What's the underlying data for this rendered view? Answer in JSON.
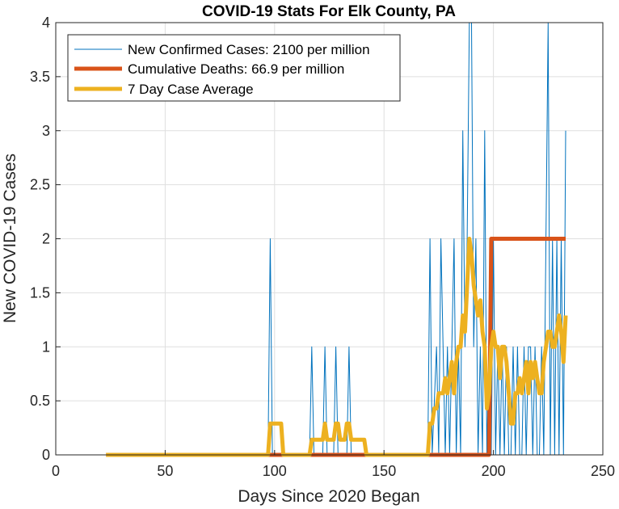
{
  "chart_data": {
    "type": "line",
    "title": "COVID-19 Stats For Elk County, PA",
    "xlabel": "Days Since 2020 Began",
    "ylabel": "New COVID-19 Cases",
    "xlim": [
      0,
      250
    ],
    "ylim": [
      0,
      4
    ],
    "xticks": [
      "0",
      "50",
      "100",
      "150",
      "200",
      "250"
    ],
    "yticks": [
      "0",
      "0.5",
      "1",
      "1.5",
      "2",
      "2.5",
      "3",
      "3.5",
      "4"
    ],
    "grid": true,
    "legend_position": "top-left",
    "series": [
      {
        "name": "New Confirmed Cases: 2100 per million",
        "color": "#0072BD",
        "x": [
          23,
          97,
          98,
          99,
          116,
          117,
          118,
          122,
          123,
          124,
          127,
          128,
          129,
          133,
          134,
          135,
          170,
          171,
          172,
          174,
          175,
          176,
          178,
          179,
          180,
          182,
          183,
          184,
          185,
          186,
          187,
          188,
          189,
          190,
          191,
          192,
          193,
          194,
          195,
          196,
          197,
          198,
          199,
          200,
          201,
          202,
          203,
          204,
          205,
          206,
          207,
          208,
          209,
          210,
          211,
          212,
          213,
          214,
          215,
          216,
          217,
          218,
          219,
          220,
          221,
          222,
          223,
          224,
          225,
          226,
          227,
          228,
          229,
          230,
          231,
          232,
          233
        ],
        "y": [
          0,
          0,
          2,
          0,
          0,
          1,
          0,
          0,
          1,
          0,
          0,
          1,
          0,
          0,
          1,
          0,
          0,
          2,
          0,
          1,
          0,
          2,
          0,
          1,
          0,
          2,
          0,
          1,
          0,
          3,
          1,
          2,
          4,
          4,
          1,
          2,
          0,
          1,
          0,
          3,
          0,
          1,
          0,
          2,
          0,
          1,
          0,
          1,
          0,
          1,
          0,
          0,
          1,
          0,
          1,
          0,
          0,
          1,
          0,
          1,
          1,
          0,
          1,
          0,
          0,
          1,
          0,
          2,
          4,
          0,
          2,
          0,
          2,
          0,
          2,
          0,
          3
        ]
      },
      {
        "name": "Cumulative Deaths: 66.9 per million",
        "color": "#D95319",
        "x": [
          23,
          197,
          198,
          199,
          233
        ],
        "y": [
          0,
          0,
          0,
          2,
          2
        ]
      },
      {
        "name": "7 Day Case Average",
        "color": "#EDB120",
        "x": [
          23,
          97,
          98,
          99,
          100,
          101,
          102,
          103,
          104,
          116,
          117,
          118,
          119,
          120,
          121,
          122,
          123,
          124,
          125,
          126,
          127,
          128,
          129,
          130,
          131,
          132,
          133,
          134,
          135,
          136,
          137,
          138,
          139,
          140,
          141,
          142,
          170,
          171,
          172,
          173,
          174,
          175,
          176,
          177,
          178,
          179,
          180,
          181,
          182,
          183,
          184,
          185,
          186,
          187,
          188,
          189,
          190,
          191,
          192,
          193,
          194,
          195,
          196,
          197,
          198,
          199,
          200,
          201,
          202,
          203,
          204,
          205,
          206,
          207,
          208,
          209,
          210,
          211,
          212,
          213,
          214,
          215,
          216,
          217,
          218,
          219,
          220,
          221,
          222,
          223,
          224,
          225,
          226,
          227,
          228,
          229,
          230,
          231,
          232,
          233
        ],
        "y": [
          0,
          0,
          0.29,
          0.29,
          0.29,
          0.29,
          0.29,
          0.29,
          0,
          0,
          0.14,
          0.14,
          0.14,
          0.14,
          0.14,
          0.14,
          0.29,
          0.14,
          0.14,
          0.14,
          0.14,
          0.29,
          0.29,
          0.14,
          0.14,
          0.14,
          0.29,
          0.29,
          0.14,
          0.14,
          0.14,
          0.14,
          0.14,
          0.14,
          0.14,
          0,
          0,
          0.29,
          0.29,
          0.43,
          0.43,
          0.57,
          0.57,
          0.57,
          0.71,
          0.57,
          0.71,
          0.86,
          0.57,
          0.86,
          1.0,
          1.0,
          1.29,
          1.14,
          1.57,
          2.0,
          1.86,
          1.57,
          1.43,
          1.29,
          1.43,
          1.14,
          1.0,
          0.43,
          0.57,
          1.0,
          1.14,
          1.0,
          1.0,
          0.71,
          1.0,
          1.0,
          0.86,
          0.57,
          0.29,
          0.29,
          0.57,
          0.57,
          0.71,
          0.57,
          0.71,
          0.86,
          0.57,
          0.86,
          0.71,
          0.86,
          0.71,
          0.57,
          0.57,
          0.86,
          1.0,
          1.14,
          1.14,
          1.0,
          1.0,
          1.14,
          1.29,
          1.14,
          0.86,
          1.29
        ]
      }
    ]
  }
}
